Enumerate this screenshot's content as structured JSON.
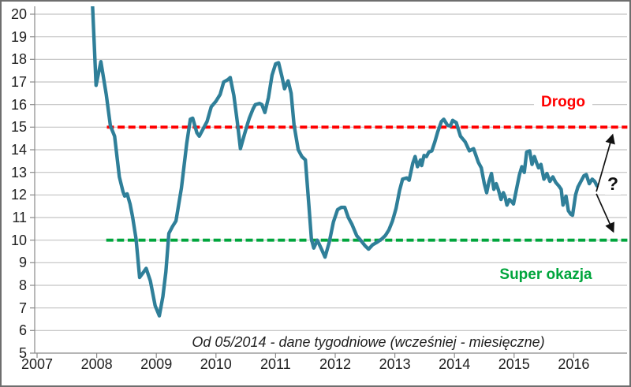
{
  "chart_data": {
    "type": "line",
    "title": "",
    "grid": true,
    "legend": "none",
    "x_axis": {
      "label": "",
      "ticks": [
        2007,
        2008,
        2009,
        2010,
        2011,
        2012,
        2013,
        2014,
        2015,
        2016
      ],
      "range": [
        2006.94,
        2016.92
      ]
    },
    "y_axis": {
      "label": "",
      "ticks": [
        5,
        6,
        7,
        8,
        9,
        10,
        11,
        12,
        13,
        14,
        15,
        16,
        17,
        18,
        19,
        20
      ],
      "range": [
        5,
        20.35
      ]
    },
    "series": [
      {
        "name": "wskaznik",
        "color": "#2F7F99",
        "points": [
          [
            2007.93,
            20.4
          ],
          [
            2007.99,
            16.85
          ],
          [
            2008.07,
            17.9
          ],
          [
            2008.16,
            16.45
          ],
          [
            2008.23,
            15.05
          ],
          [
            2008.27,
            14.8
          ],
          [
            2008.3,
            14.6
          ],
          [
            2008.38,
            12.8
          ],
          [
            2008.44,
            12.15
          ],
          [
            2008.47,
            11.95
          ],
          [
            2008.51,
            12.05
          ],
          [
            2008.56,
            11.6
          ],
          [
            2008.6,
            11.05
          ],
          [
            2008.66,
            10.05
          ],
          [
            2008.72,
            8.35
          ],
          [
            2008.79,
            8.6
          ],
          [
            2008.83,
            8.75
          ],
          [
            2008.9,
            8.2
          ],
          [
            2008.98,
            7.1
          ],
          [
            2009.05,
            6.65
          ],
          [
            2009.11,
            7.5
          ],
          [
            2009.16,
            8.6
          ],
          [
            2009.21,
            10.3
          ],
          [
            2009.27,
            10.6
          ],
          [
            2009.33,
            10.85
          ],
          [
            2009.42,
            12.3
          ],
          [
            2009.51,
            14.3
          ],
          [
            2009.57,
            15.35
          ],
          [
            2009.61,
            15.4
          ],
          [
            2009.68,
            14.75
          ],
          [
            2009.72,
            14.6
          ],
          [
            2009.8,
            15.0
          ],
          [
            2009.85,
            15.25
          ],
          [
            2009.92,
            15.9
          ],
          [
            2010.0,
            16.15
          ],
          [
            2010.07,
            16.45
          ],
          [
            2010.13,
            17.0
          ],
          [
            2010.2,
            17.1
          ],
          [
            2010.24,
            17.2
          ],
          [
            2010.3,
            16.4
          ],
          [
            2010.36,
            15.2
          ],
          [
            2010.41,
            14.05
          ],
          [
            2010.48,
            14.7
          ],
          [
            2010.53,
            15.15
          ],
          [
            2010.56,
            15.4
          ],
          [
            2010.62,
            15.8
          ],
          [
            2010.66,
            16.0
          ],
          [
            2010.73,
            16.05
          ],
          [
            2010.77,
            16.0
          ],
          [
            2010.82,
            15.65
          ],
          [
            2010.88,
            16.3
          ],
          [
            2010.94,
            17.3
          ],
          [
            2011.0,
            17.8
          ],
          [
            2011.05,
            17.85
          ],
          [
            2011.11,
            17.2
          ],
          [
            2011.15,
            16.7
          ],
          [
            2011.21,
            17.05
          ],
          [
            2011.26,
            16.5
          ],
          [
            2011.31,
            15.1
          ],
          [
            2011.38,
            14.0
          ],
          [
            2011.44,
            13.7
          ],
          [
            2011.5,
            13.55
          ],
          [
            2011.56,
            11.5
          ],
          [
            2011.6,
            10.05
          ],
          [
            2011.64,
            9.65
          ],
          [
            2011.7,
            10.0
          ],
          [
            2011.77,
            9.6
          ],
          [
            2011.83,
            9.25
          ],
          [
            2011.9,
            9.9
          ],
          [
            2011.97,
            10.8
          ],
          [
            2012.04,
            11.35
          ],
          [
            2012.1,
            11.45
          ],
          [
            2012.16,
            11.45
          ],
          [
            2012.22,
            11.0
          ],
          [
            2012.28,
            10.7
          ],
          [
            2012.36,
            10.2
          ],
          [
            2012.44,
            9.95
          ],
          [
            2012.5,
            9.75
          ],
          [
            2012.56,
            9.6
          ],
          [
            2012.63,
            9.8
          ],
          [
            2012.7,
            9.9
          ],
          [
            2012.78,
            10.05
          ],
          [
            2012.84,
            10.2
          ],
          [
            2012.9,
            10.45
          ],
          [
            2012.96,
            10.85
          ],
          [
            2013.02,
            11.4
          ],
          [
            2013.08,
            12.2
          ],
          [
            2013.13,
            12.7
          ],
          [
            2013.2,
            12.75
          ],
          [
            2013.24,
            12.65
          ],
          [
            2013.3,
            13.4
          ],
          [
            2013.34,
            13.7
          ],
          [
            2013.38,
            13.25
          ],
          [
            2013.43,
            13.55
          ],
          [
            2013.45,
            13.3
          ],
          [
            2013.49,
            13.75
          ],
          [
            2013.53,
            13.7
          ],
          [
            2013.57,
            13.9
          ],
          [
            2013.62,
            13.95
          ],
          [
            2013.67,
            14.35
          ],
          [
            2013.72,
            14.8
          ],
          [
            2013.78,
            15.25
          ],
          [
            2013.82,
            15.35
          ],
          [
            2013.88,
            15.1
          ],
          [
            2013.93,
            15.05
          ],
          [
            2013.97,
            15.3
          ],
          [
            2014.03,
            15.2
          ],
          [
            2014.1,
            14.6
          ],
          [
            2014.18,
            14.35
          ],
          [
            2014.25,
            13.95
          ],
          [
            2014.32,
            14.05
          ],
          [
            2014.4,
            13.45
          ],
          [
            2014.45,
            13.2
          ],
          [
            2014.5,
            12.5
          ],
          [
            2014.54,
            12.1
          ],
          [
            2014.58,
            12.6
          ],
          [
            2014.62,
            12.95
          ],
          [
            2014.66,
            12.25
          ],
          [
            2014.7,
            12.5
          ],
          [
            2014.74,
            12.2
          ],
          [
            2014.78,
            11.8
          ],
          [
            2014.82,
            12.1
          ],
          [
            2014.85,
            11.9
          ],
          [
            2014.88,
            11.55
          ],
          [
            2014.92,
            11.8
          ],
          [
            2014.96,
            11.7
          ],
          [
            2014.99,
            11.6
          ],
          [
            2015.04,
            12.25
          ],
          [
            2015.09,
            12.9
          ],
          [
            2015.13,
            13.25
          ],
          [
            2015.17,
            13.0
          ],
          [
            2015.21,
            13.9
          ],
          [
            2015.26,
            13.95
          ],
          [
            2015.3,
            13.35
          ],
          [
            2015.34,
            13.7
          ],
          [
            2015.38,
            13.4
          ],
          [
            2015.41,
            13.2
          ],
          [
            2015.45,
            13.35
          ],
          [
            2015.5,
            12.7
          ],
          [
            2015.55,
            12.95
          ],
          [
            2015.6,
            12.6
          ],
          [
            2015.65,
            12.8
          ],
          [
            2015.7,
            12.55
          ],
          [
            2015.75,
            12.4
          ],
          [
            2015.79,
            12.25
          ],
          [
            2015.82,
            11.55
          ],
          [
            2015.87,
            11.95
          ],
          [
            2015.91,
            11.3
          ],
          [
            2015.95,
            11.15
          ],
          [
            2015.98,
            11.1
          ],
          [
            2016.03,
            12.0
          ],
          [
            2016.07,
            12.35
          ],
          [
            2016.12,
            12.6
          ],
          [
            2016.17,
            12.85
          ],
          [
            2016.21,
            12.9
          ],
          [
            2016.26,
            12.5
          ],
          [
            2016.31,
            12.7
          ],
          [
            2016.35,
            12.6
          ],
          [
            2016.39,
            12.4
          ]
        ]
      }
    ],
    "reference_lines": [
      {
        "label": "Drogo",
        "value": 15,
        "color": "#FF0000",
        "style": "dashed",
        "x_start": 2008.17,
        "x_end": 2016.9
      },
      {
        "label": "Super okazja",
        "value": 10,
        "color": "#00A53C",
        "style": "dashed",
        "x_start": 2008.16,
        "x_end": 2016.9
      }
    ],
    "outlook_arrows": [
      {
        "direction": "up",
        "from": [
          2016.38,
          12.15
        ],
        "to": [
          2016.65,
          14.63
        ]
      },
      {
        "direction": "down",
        "from": [
          2016.38,
          12.05
        ],
        "to": [
          2016.66,
          10.4
        ]
      }
    ],
    "annotations": [
      {
        "text": "Od 05/2014 - dane tygodniowe (wcześniej - miesięczne)",
        "at": [
          2012.55,
          5.6
        ]
      },
      {
        "text": "?",
        "at": [
          2016.66,
          12.45
        ]
      }
    ]
  },
  "labels": {
    "drogo": "Drogo",
    "super_okazja": "Super okazja",
    "note": "Od 05/2014 - dane tygodniowe (wcześniej - miesięczne)",
    "question": "?"
  },
  "colors": {
    "series": "#2F7F99",
    "drogo": "#FF0000",
    "okazja": "#00A53C",
    "grid": "#c3c3c3",
    "axis": "#8a8a8a",
    "arrow": "#111111",
    "text": "#1f1f1f"
  }
}
